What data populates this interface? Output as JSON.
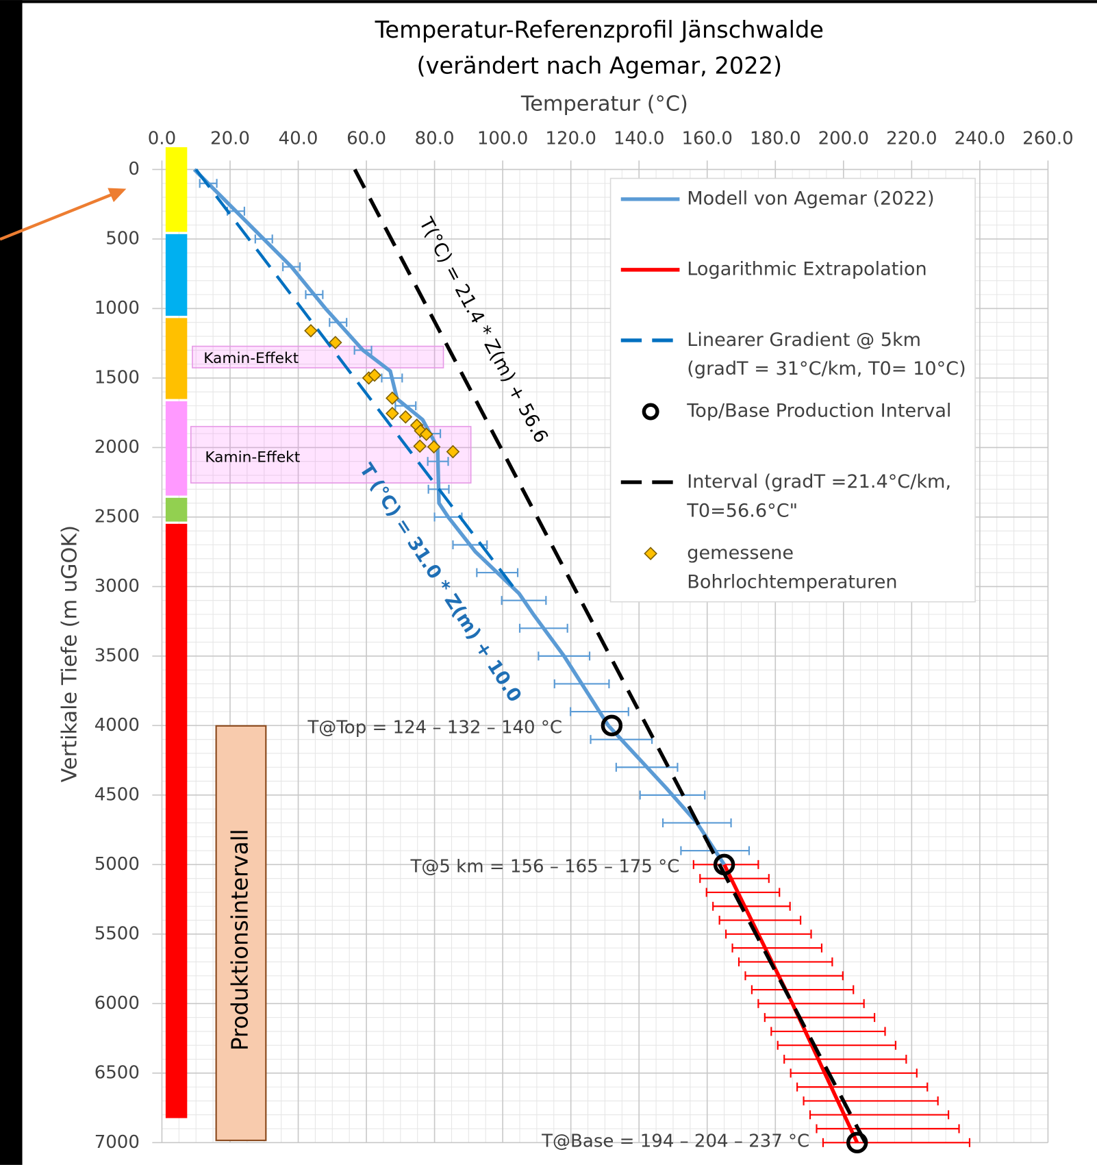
{
  "chart_data": {
    "type": "line",
    "title": "Temperatur-Referenzprofil Jänschwalde",
    "subtitle": "(verändert nach Agemar, 2022)",
    "x_label": "Temperatur (°C)",
    "y_label": "Vertikale Tiefe (m uGOK)",
    "xlim": [
      0,
      260
    ],
    "xticks": [
      {
        "value": 0,
        "label": "0.0"
      },
      {
        "value": 20,
        "label": "20.0"
      },
      {
        "value": 40,
        "label": "40.0"
      },
      {
        "value": 60,
        "label": "60.0"
      },
      {
        "value": 80,
        "label": "80.0"
      },
      {
        "value": 100,
        "label": "100.0"
      },
      {
        "value": 120,
        "label": "120.0"
      },
      {
        "value": 140,
        "label": "140.0"
      },
      {
        "value": 160,
        "label": "160.0"
      },
      {
        "value": 180,
        "label": "180.0"
      },
      {
        "value": 200,
        "label": "200.0"
      },
      {
        "value": 220,
        "label": "220.0"
      },
      {
        "value": 240,
        "label": "240.0"
      },
      {
        "value": 260,
        "label": "260.0"
      }
    ],
    "ylim": [
      0,
      7000
    ],
    "yticks": [
      0,
      500,
      1000,
      1500,
      2000,
      2500,
      3000,
      3500,
      4000,
      4500,
      5000,
      5500,
      6000,
      6500,
      7000
    ],
    "y_inverted": true,
    "grid": true,
    "minor_grid": true,
    "series": [
      {
        "name": "Modell von Agemar (2022)",
        "type": "line",
        "color": "#5b9bd5",
        "x": [
          9.5,
          38,
          48,
          59,
          67,
          69,
          76.5,
          80.9,
          81.3,
          84,
          92,
          104.8,
          109,
          118,
          131,
          148,
          157,
          165
        ],
        "y": [
          0,
          700,
          1000,
          1300,
          1450,
          1650,
          1800,
          2000,
          2400,
          2500,
          2750,
          3050,
          3200,
          3500,
          4000,
          4450,
          4700,
          5000
        ]
      },
      {
        "name": "Logarithmic Extrapolation",
        "type": "line",
        "color": "#ff0000",
        "x": [
          165,
          185,
          204
        ],
        "y": [
          5000,
          6000,
          7000
        ]
      },
      {
        "name": "Linearer Gradient @ 5km\n(gradT = 31°C/km, T0= 10°C)",
        "type": "line",
        "dashed": true,
        "color": "#0070c0",
        "x": [
          10,
          103
        ],
        "y": [
          0,
          3000
        ]
      },
      {
        "name": "Top/Base Production Interval",
        "type": "scatter",
        "marker": "circle",
        "color": "#000000",
        "x": [
          132,
          165,
          204
        ],
        "y": [
          4000,
          5000,
          7000
        ]
      },
      {
        "name": "Interval (gradT =21.4°C/km,\nT0=56.6°C\"",
        "type": "line",
        "dashed": true,
        "color": "#000000",
        "x": [
          56.6,
          206.4
        ],
        "y": [
          0,
          7000
        ]
      },
      {
        "name": "gemessene\nBohrlochtemperaturen",
        "type": "scatter",
        "marker": "diamond",
        "color": "#ffc000",
        "x": [
          43.7,
          50.9,
          60.7,
          62.4,
          67.6,
          67.6,
          71.5,
          74.8,
          75.9,
          77.6,
          75.7,
          79.8,
          85.4
        ],
        "y": [
          1160,
          1245,
          1500,
          1480,
          1645,
          1755,
          1780,
          1840,
          1880,
          1905,
          1990,
          1995,
          2030
        ]
      }
    ],
    "error_bars": [
      {
        "color": "#5b9bd5",
        "y": [
          100,
          300,
          500,
          700,
          900,
          1100,
          1300,
          1500,
          1700,
          1900,
          2100,
          2300,
          2500,
          2700,
          2900,
          3100,
          3300,
          3500,
          3700,
          3900,
          4100,
          4300,
          4500,
          4700,
          4900
        ],
        "low": [
          11.1,
          19.2,
          27.4,
          35.5,
          42.2,
          49.2,
          56.5,
          64.5,
          68.5,
          75.7,
          78.0,
          78.2,
          80.0,
          85.4,
          92.4,
          99.7,
          105.0,
          110.5,
          115.2,
          119.9,
          125.8,
          133.3,
          140.3,
          147.0,
          152.3
        ],
        "high": [
          16.1,
          24.2,
          32.4,
          40.5,
          47.2,
          54.2,
          61.5,
          70.5,
          74.5,
          81.7,
          84.0,
          84.2,
          88.0,
          95.4,
          104.4,
          112.7,
          119.0,
          125.5,
          131.2,
          136.9,
          143.8,
          151.3,
          159.3,
          167.0,
          172.3
        ]
      },
      {
        "color": "#ff0000",
        "y": [
          5000,
          5100,
          5200,
          5300,
          5400,
          5500,
          5600,
          5700,
          5800,
          5900,
          6000,
          6100,
          6200,
          6300,
          6400,
          6500,
          6600,
          6700,
          6800,
          6900,
          7000
        ],
        "low": [
          156.0,
          157.9,
          159.8,
          161.7,
          163.6,
          165.5,
          167.4,
          169.3,
          171.2,
          173.1,
          175.0,
          176.9,
          178.8,
          180.7,
          182.6,
          184.5,
          186.4,
          188.3,
          190.2,
          192.1,
          194.0
        ],
        "high": [
          175.0,
          178.1,
          181.2,
          184.3,
          187.4,
          190.5,
          193.6,
          196.7,
          199.8,
          202.9,
          206.0,
          209.1,
          212.2,
          215.3,
          218.4,
          221.5,
          224.6,
          227.7,
          230.8,
          233.9,
          237.0
        ]
      }
    ],
    "annotations": [
      "T@Top = 124 – 132 – 140 °C",
      "T@5 km = 156 – 165 – 175 °C",
      "T@Base = 194 – 204 – 237 °C"
    ],
    "equations": [
      "T(°C) = 21.4 * Z(m) + 56.6",
      "T (°C) = 31.0 * Z(m) + 10.0"
    ],
    "box_labels": [
      "Kamin-Effekt",
      "Kamin-Effekt"
    ],
    "column_label": "Produktionsintervall"
  }
}
